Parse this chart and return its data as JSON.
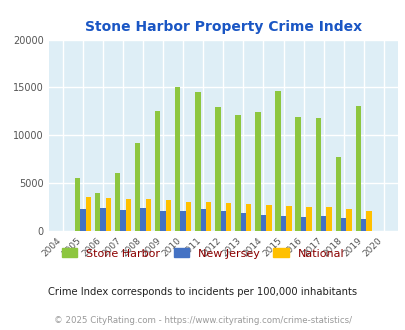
{
  "title": "Stone Harbor Property Crime Index",
  "title_color": "#1a56c4",
  "years": [
    2004,
    2005,
    2006,
    2007,
    2008,
    2009,
    2010,
    2011,
    2012,
    2013,
    2014,
    2015,
    2016,
    2017,
    2018,
    2019,
    2020
  ],
  "stone_harbor": [
    0,
    5500,
    4000,
    6100,
    9200,
    12500,
    15000,
    14500,
    13000,
    12100,
    12400,
    14600,
    11900,
    11800,
    7700,
    13100,
    0
  ],
  "new_jersey": [
    0,
    2300,
    2400,
    2200,
    2400,
    2100,
    2100,
    2300,
    2100,
    1900,
    1700,
    1600,
    1500,
    1600,
    1400,
    1300,
    0
  ],
  "national": [
    0,
    3600,
    3500,
    3300,
    3300,
    3200,
    3000,
    3000,
    2900,
    2800,
    2700,
    2600,
    2500,
    2500,
    2300,
    2100,
    0
  ],
  "stone_harbor_color": "#8dc63f",
  "new_jersey_color": "#4472c4",
  "national_color": "#ffc000",
  "bg_color": "#deeef6",
  "ylim": [
    0,
    20000
  ],
  "yticks": [
    0,
    5000,
    10000,
    15000,
    20000
  ],
  "grid_color": "#ffffff",
  "legend_labels": [
    "Stone Harbor",
    "New Jersey",
    "National"
  ],
  "footnote1": "Crime Index corresponds to incidents per 100,000 inhabitants",
  "footnote2": "© 2025 CityRating.com - https://www.cityrating.com/crime-statistics/",
  "footnote1_color": "#222222",
  "footnote2_color": "#999999",
  "bar_width": 0.27
}
